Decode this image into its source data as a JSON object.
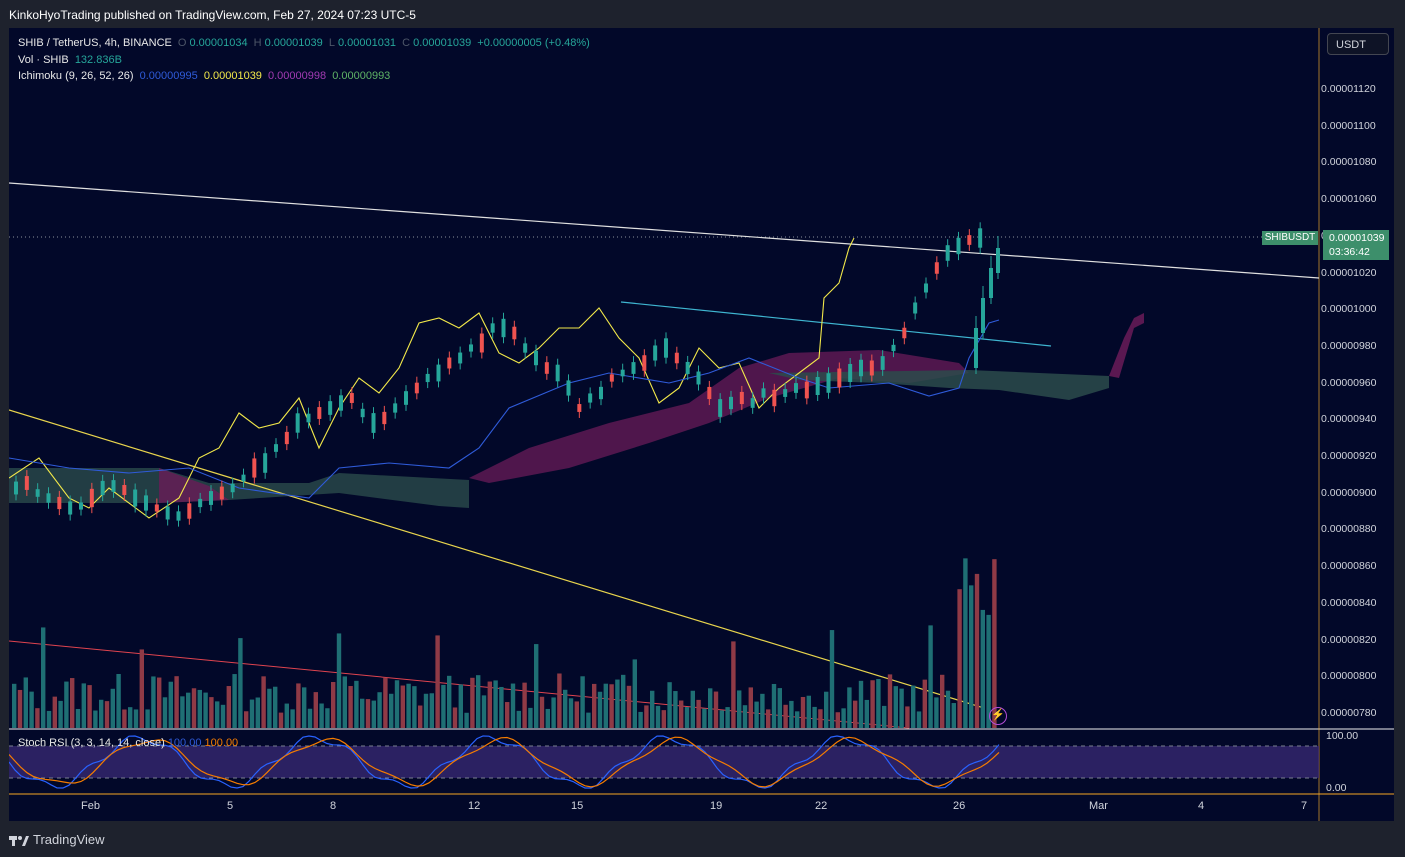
{
  "header": {
    "published": "KinkoHyoTrading published on TradingView.com, Feb 27, 2024 07:23 UTC-5"
  },
  "legend": {
    "symbol": "SHIB / TetherUS, 4h, BINANCE",
    "o_label": "O",
    "o_value": "0.00001034",
    "h_label": "H",
    "h_value": "0.00001039",
    "l_label": "L",
    "l_value": "0.00001031",
    "c_label": "C",
    "c_value": "0.00001039",
    "change": "+0.00000005 (+0.48%)",
    "vol_label": "Vol · SHIB",
    "vol_value": "132.836B",
    "ichimoku_label": "Ichimoku (9, 26, 52, 26)",
    "ichi_conv": "0.00000995",
    "ichi_base": "0.00001039",
    "ichi_lead_a": "0.00000998",
    "ichi_lead_b": "0.00000993"
  },
  "currency_button": "USDT",
  "price_scale": [
    "0.00001120",
    "0.00001100",
    "0.00001080",
    "0.00001060",
    "0.00001040",
    "0.00001020",
    "0.00001000",
    "0.00000980",
    "0.00000960",
    "0.00000940",
    "0.00000920",
    "0.00000900",
    "0.00000880",
    "0.00000860",
    "0.00000840",
    "0.00000820",
    "0.00000800",
    "0.00000780"
  ],
  "current_price": {
    "symbol": "SHIBUSDT",
    "value": "0.00001039",
    "countdown": "03:36:42"
  },
  "rsi": {
    "label": "Stoch RSI (3, 3, 14, 14, close)",
    "k": "100.00",
    "d": "100.00",
    "scale_top": "100.00",
    "scale_bottom": "0.00"
  },
  "time_axis": [
    "Feb",
    "5",
    "8",
    "12",
    "15",
    "19",
    "22",
    "26",
    "Mar",
    "4",
    "7"
  ],
  "footer": {
    "brand": "TradingView"
  },
  "colors": {
    "up": "#26a69a",
    "down": "#ef5350",
    "background": "#020829",
    "kumo_bull": "#2b4b4b",
    "kumo_bear": "#6a1b58"
  }
}
